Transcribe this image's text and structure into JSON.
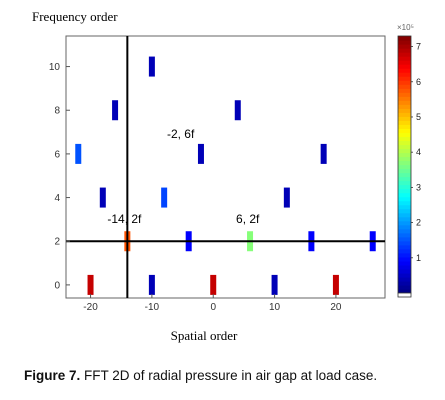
{
  "chart_data": {
    "type": "heatmap",
    "ylabel": "Frequency order",
    "xlabel": "Spatial order",
    "xlim": [
      -24,
      28
    ],
    "ylim": [
      -0.6,
      11.4
    ],
    "x_ticks": [
      "-20",
      "-10",
      "0",
      "10",
      "20"
    ],
    "y_ticks": [
      "0",
      "2",
      "4",
      "6",
      "8",
      "10"
    ],
    "colorbar": {
      "ticks": [
        "1",
        "2",
        "3",
        "4",
        "5",
        "6",
        "7"
      ],
      "exponent_label": "×10⁵",
      "range": [
        0,
        7.3
      ]
    },
    "points": [
      {
        "x": -22,
        "y": 6,
        "value": 1.5
      },
      {
        "x": -20,
        "y": 0,
        "value": 6.8
      },
      {
        "x": -18,
        "y": 4,
        "value": 0.4
      },
      {
        "x": -16,
        "y": 8,
        "value": 0.4
      },
      {
        "x": -14,
        "y": 2,
        "value": 5.8
      },
      {
        "x": -10,
        "y": 0,
        "value": 0.4
      },
      {
        "x": -10,
        "y": 10,
        "value": 0.4
      },
      {
        "x": -8,
        "y": 4,
        "value": 1.4
      },
      {
        "x": -4,
        "y": 2,
        "value": 0.9
      },
      {
        "x": -2,
        "y": 6,
        "value": 0.4
      },
      {
        "x": 0,
        "y": 0,
        "value": 6.8
      },
      {
        "x": 4,
        "y": 8,
        "value": 0.4
      },
      {
        "x": 6,
        "y": 2,
        "value": 3.7
      },
      {
        "x": 10,
        "y": 0,
        "value": 0.4
      },
      {
        "x": 12,
        "y": 4,
        "value": 0.4
      },
      {
        "x": 16,
        "y": 2,
        "value": 0.9
      },
      {
        "x": 18,
        "y": 6,
        "value": 0.4
      },
      {
        "x": 20,
        "y": 0,
        "value": 6.8
      },
      {
        "x": 26,
        "y": 2,
        "value": 0.9
      }
    ],
    "reference_lines": {
      "vertical_x": -14,
      "horizontal_y": 2
    },
    "annotations": [
      {
        "text": "-14, 2f",
        "x": -14,
        "y": 2
      },
      {
        "text": "-2, 6f",
        "x": -2,
        "y": 6
      },
      {
        "text": "6, 2f",
        "x": 6,
        "y": 2
      }
    ]
  },
  "caption": {
    "label": "Figure 7.",
    "text": "FFT 2D of radial pressure in air gap at load case."
  }
}
